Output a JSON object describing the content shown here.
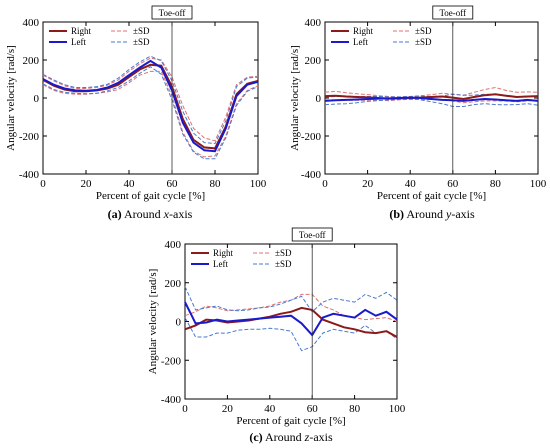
{
  "chart_data": [
    {
      "type": "line",
      "caption": {
        "prefix": "(a)",
        "text": "Around",
        "axis": "x",
        "suffix": "-axis"
      },
      "xlabel": "Percent of gait cycle [%]",
      "ylabel": "Angular velocity [rad/s]",
      "xlim": [
        0,
        100
      ],
      "ylim": [
        -400,
        400
      ],
      "xticks": [
        0,
        20,
        40,
        60,
        80,
        100
      ],
      "yticks": [
        400,
        200,
        0,
        -200,
        -400
      ],
      "vline": {
        "x": 60,
        "label": "Toe-off"
      },
      "legend": {
        "position": "top-left",
        "entries": [
          "Right",
          "Left",
          "±SD",
          "±SD"
        ]
      },
      "x": [
        0,
        5,
        10,
        15,
        20,
        25,
        30,
        35,
        40,
        45,
        50,
        55,
        60,
        65,
        70,
        75,
        80,
        85,
        90,
        95,
        100
      ],
      "series": [
        {
          "name": "Right",
          "color": "#8b1a1a",
          "style": "solid",
          "values": [
            95,
            65,
            45,
            35,
            35,
            40,
            50,
            70,
            110,
            150,
            175,
            170,
            60,
            -110,
            -220,
            -260,
            -265,
            -150,
            20,
            75,
            90
          ]
        },
        {
          "name": "Left",
          "color": "#1a1acc",
          "style": "solid",
          "values": [
            100,
            70,
            50,
            40,
            38,
            42,
            55,
            80,
            120,
            160,
            195,
            160,
            40,
            -130,
            -235,
            -275,
            -280,
            -160,
            10,
            70,
            85
          ]
        },
        {
          "name": "±SD",
          "color": "#e07070",
          "style": "dashed",
          "band": "Right",
          "upper": [
            120,
            90,
            65,
            50,
            50,
            55,
            68,
            95,
            140,
            180,
            210,
            200,
            110,
            -40,
            -160,
            -210,
            -225,
            -100,
            70,
            110,
            115
          ],
          "lower": [
            70,
            40,
            25,
            20,
            20,
            25,
            32,
            45,
            80,
            120,
            140,
            140,
            10,
            -180,
            -280,
            -310,
            -305,
            -200,
            -30,
            40,
            65
          ]
        },
        {
          "name": "±SD",
          "color": "#4a7ad0",
          "style": "dashed",
          "band": "Left",
          "upper": [
            125,
            95,
            70,
            55,
            55,
            60,
            72,
            105,
            150,
            190,
            220,
            195,
            90,
            -70,
            -185,
            -235,
            -240,
            -120,
            60,
            105,
            110
          ],
          "lower": [
            75,
            45,
            30,
            25,
            22,
            25,
            38,
            55,
            90,
            130,
            165,
            125,
            -10,
            -190,
            -285,
            -320,
            -320,
            -210,
            -40,
            35,
            60
          ]
        }
      ]
    },
    {
      "type": "line",
      "caption": {
        "prefix": "(b)",
        "text": "Around",
        "axis": "y",
        "suffix": "-axis"
      },
      "xlabel": "Percent of gait cycle [%]",
      "ylabel": "Angular velocity [rad/s]",
      "xlim": [
        0,
        100
      ],
      "ylim": [
        -400,
        400
      ],
      "xticks": [
        0,
        20,
        40,
        60,
        80,
        100
      ],
      "yticks": [
        400,
        200,
        0,
        -200,
        -400
      ],
      "vline": {
        "x": 60,
        "label": "Toe-off"
      },
      "legend": {
        "position": "top-left",
        "entries": [
          "Right",
          "Left",
          "±SD",
          "±SD"
        ]
      },
      "x": [
        0,
        5,
        10,
        15,
        20,
        25,
        30,
        35,
        40,
        45,
        50,
        55,
        60,
        65,
        70,
        75,
        80,
        85,
        90,
        95,
        100
      ],
      "series": [
        {
          "name": "Right",
          "color": "#8b1a1a",
          "style": "solid",
          "values": [
            10,
            12,
            8,
            5,
            3,
            0,
            -3,
            -2,
            0,
            2,
            5,
            8,
            2,
            -5,
            5,
            15,
            20,
            12,
            5,
            8,
            10
          ]
        },
        {
          "name": "Left",
          "color": "#1a1acc",
          "style": "solid",
          "values": [
            -15,
            -12,
            -10,
            -8,
            -5,
            -3,
            -2,
            0,
            2,
            0,
            -5,
            -10,
            -12,
            -15,
            -10,
            -5,
            -8,
            -12,
            -15,
            -10,
            -15
          ]
        },
        {
          "name": "±SD",
          "color": "#e07070",
          "style": "dashed",
          "band": "Right",
          "upper": [
            30,
            35,
            28,
            22,
            18,
            12,
            8,
            5,
            8,
            12,
            18,
            25,
            20,
            15,
            30,
            45,
            55,
            40,
            30,
            32,
            30
          ],
          "lower": [
            -10,
            -10,
            -12,
            -12,
            -12,
            -12,
            -14,
            -9,
            -8,
            -8,
            -8,
            -9,
            -16,
            -25,
            -20,
            -15,
            -15,
            -16,
            -20,
            -16,
            -10
          ]
        },
        {
          "name": "±SD",
          "color": "#4a7ad0",
          "style": "dashed",
          "band": "Left",
          "upper": [
            5,
            8,
            10,
            8,
            8,
            8,
            6,
            6,
            8,
            10,
            8,
            10,
            20,
            15,
            15,
            20,
            18,
            12,
            5,
            10,
            8
          ],
          "lower": [
            -35,
            -32,
            -30,
            -25,
            -18,
            -14,
            -10,
            -6,
            -4,
            -10,
            -20,
            -30,
            -45,
            -45,
            -35,
            -30,
            -35,
            -36,
            -35,
            -30,
            -38
          ]
        }
      ]
    },
    {
      "type": "line",
      "caption": {
        "prefix": "(c)",
        "text": "Around",
        "axis": "z",
        "suffix": "-axis"
      },
      "xlabel": "Percent of gait cycle [%]",
      "ylabel": "Angular velocity [rad/s]",
      "xlim": [
        0,
        100
      ],
      "ylim": [
        -400,
        400
      ],
      "xticks": [
        0,
        20,
        40,
        60,
        80,
        100
      ],
      "yticks": [
        400,
        200,
        0,
        -200,
        -400
      ],
      "vline": {
        "x": 60,
        "label": "Toe-off"
      },
      "legend": {
        "position": "top-left",
        "entries": [
          "Right",
          "Left",
          "±SD",
          "±SD"
        ]
      },
      "x": [
        0,
        5,
        10,
        15,
        20,
        25,
        30,
        35,
        40,
        45,
        50,
        55,
        60,
        65,
        70,
        75,
        80,
        85,
        90,
        95,
        100
      ],
      "series": [
        {
          "name": "Right",
          "color": "#8b1a1a",
          "style": "solid",
          "values": [
            -40,
            -20,
            10,
            5,
            -5,
            0,
            5,
            15,
            25,
            40,
            50,
            70,
            60,
            10,
            -10,
            -30,
            -40,
            -55,
            -60,
            -50,
            -80
          ]
        },
        {
          "name": "Left",
          "color": "#1a1acc",
          "style": "solid",
          "values": [
            100,
            -10,
            -5,
            10,
            0,
            5,
            10,
            15,
            20,
            25,
            30,
            -10,
            -70,
            20,
            40,
            30,
            20,
            60,
            30,
            50,
            10
          ]
        },
        {
          "name": "±SD",
          "color": "#e07070",
          "style": "dashed",
          "band": "Right",
          "upper": [
            30,
            50,
            80,
            70,
            55,
            60,
            65,
            70,
            80,
            100,
            110,
            140,
            140,
            80,
            60,
            30,
            20,
            10,
            15,
            20,
            0
          ]
        },
        {
          "name": "±SD",
          "color": "#4a7ad0",
          "style": "dashed",
          "band": "Left",
          "upper": [
            180,
            60,
            70,
            80,
            60,
            55,
            60,
            70,
            75,
            90,
            110,
            130,
            50,
            100,
            120,
            110,
            100,
            140,
            120,
            150,
            110
          ],
          "lower": [
            20,
            -80,
            -80,
            -60,
            -60,
            -45,
            -40,
            -40,
            -35,
            -40,
            -50,
            -150,
            -130,
            -60,
            -40,
            -50,
            -60,
            -20,
            -60,
            -50,
            -90
          ]
        }
      ]
    }
  ]
}
